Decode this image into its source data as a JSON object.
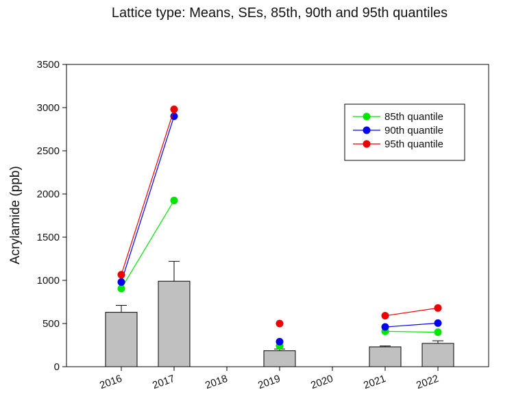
{
  "chart_data": {
    "type": "bar",
    "title": "Lattice type: Means, SEs, 85th, 90th and 95th quantiles",
    "xlabel": "",
    "ylabel": "Acrylamide (ppb)",
    "categories": [
      "2016",
      "2017",
      "2018",
      "2019",
      "2020",
      "2021",
      "2022"
    ],
    "ylim": [
      0,
      3500
    ],
    "yticks": [
      0,
      500,
      1000,
      1500,
      2000,
      2500,
      3000,
      3500
    ],
    "grid": false,
    "legend_position": "top-right",
    "bars": {
      "color": "#c0c0c0",
      "values": [
        630,
        990,
        null,
        185,
        null,
        230,
        270
      ],
      "se_upper": [
        710,
        1220,
        null,
        205,
        null,
        240,
        300
      ]
    },
    "series": [
      {
        "name": "85th quantile",
        "color": "#00e600",
        "values": [
          905,
          1925,
          null,
          240,
          null,
          410,
          400
        ]
      },
      {
        "name": "90th quantile",
        "color": "#0000ee",
        "values": [
          980,
          2900,
          null,
          290,
          null,
          460,
          505
        ]
      },
      {
        "name": "95th quantile",
        "color": "#ee0000",
        "values": [
          1065,
          2980,
          null,
          500,
          null,
          590,
          680
        ]
      }
    ]
  }
}
